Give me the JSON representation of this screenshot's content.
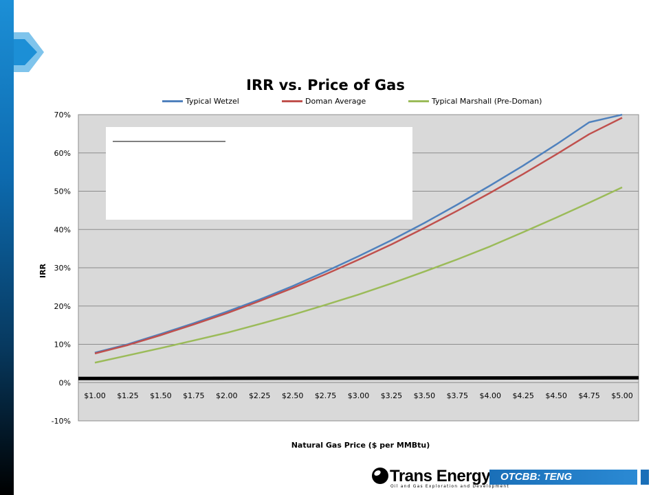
{
  "chart_data": {
    "type": "line",
    "title": "IRR vs. Price of Gas",
    "xlabel": "Natural Gas Price ($ per MMBtu)",
    "ylabel": "IRR",
    "categories": [
      "$1.00",
      "$1.25",
      "$1.50",
      "$1.75",
      "$2.00",
      "$2.25",
      "$2.50",
      "$2.75",
      "$3.00",
      "$3.25",
      "$3.50",
      "$3.75",
      "$4.00",
      "$4.25",
      "$4.50",
      "$4.75",
      "$5.00"
    ],
    "x": [
      1.0,
      1.25,
      1.5,
      1.75,
      2.0,
      2.25,
      2.5,
      2.75,
      3.0,
      3.25,
      3.5,
      3.75,
      4.0,
      4.25,
      4.5,
      4.75,
      5.0
    ],
    "yticks": [
      "-10%",
      "0%",
      "10%",
      "20%",
      "30%",
      "40%",
      "50%",
      "60%",
      "70%"
    ],
    "ylim": [
      -10,
      70
    ],
    "grid": true,
    "legend_position": "top",
    "series": [
      {
        "name": "Typical Wetzel",
        "color": "#4f81bd",
        "values": [
          7.8,
          10.0,
          12.7,
          15.5,
          18.5,
          21.7,
          25.2,
          29.0,
          33.0,
          37.2,
          41.7,
          46.5,
          51.5,
          56.7,
          62.2,
          68.0,
          72.8
        ]
      },
      {
        "name": "Doman Average",
        "color": "#c0504d",
        "values": [
          7.6,
          9.8,
          12.4,
          15.2,
          18.1,
          21.3,
          24.7,
          28.3,
          32.1,
          36.1,
          40.4,
          44.9,
          49.6,
          54.5,
          59.6,
          64.9,
          69.2
        ]
      },
      {
        "name": "Typical Marshall (Pre-Doman)",
        "color": "#9bbb59",
        "values": [
          5.2,
          7.1,
          9.0,
          11.0,
          13.0,
          15.3,
          17.7,
          20.3,
          23.0,
          25.9,
          29.0,
          32.2,
          35.6,
          39.3,
          43.1,
          47.0,
          51.0
        ]
      }
    ],
    "zero_line_color": "#000000"
  },
  "logo": {
    "company": "Trans Energy, Inc.",
    "tagline": "Oil and Gas Exploration and Development",
    "ticker": "OTCBB: TENG"
  }
}
